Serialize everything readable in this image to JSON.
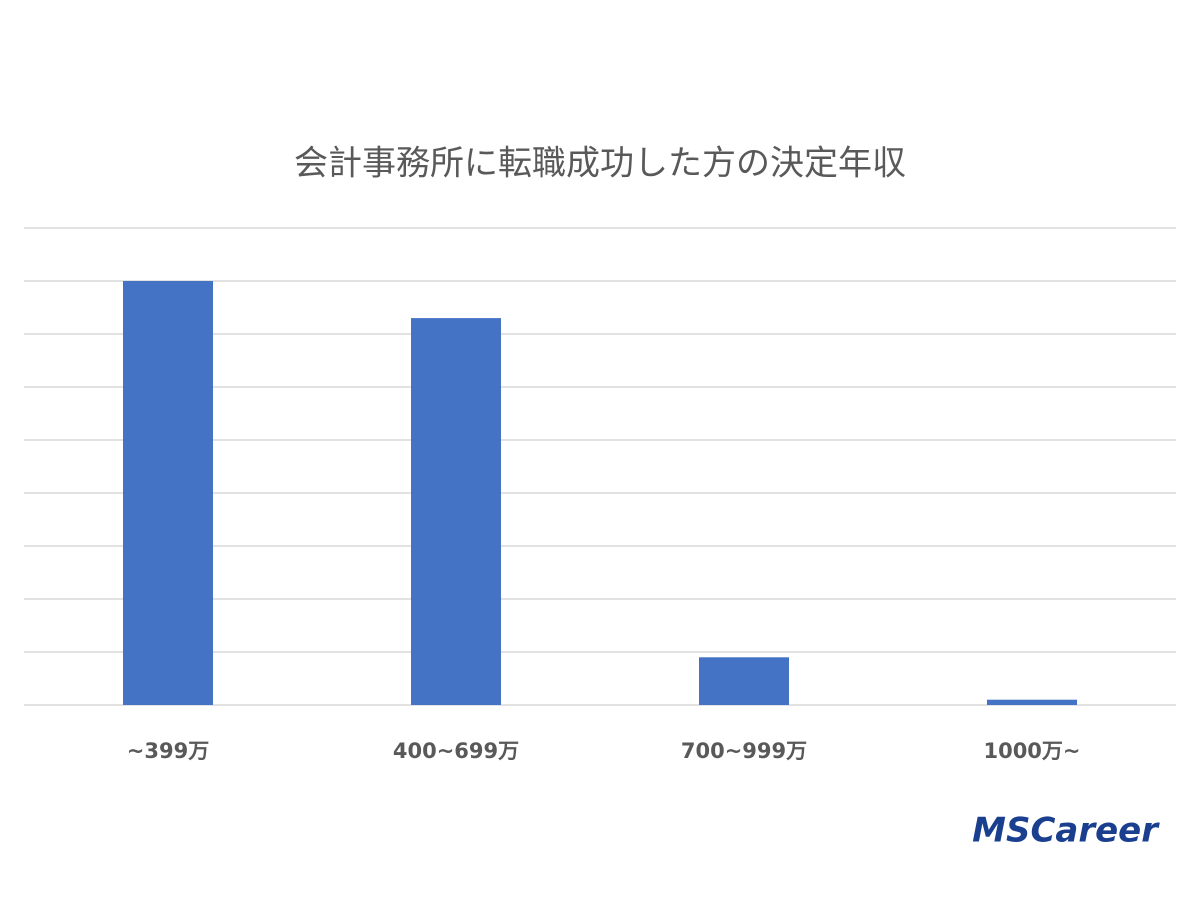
{
  "chart_data": {
    "type": "bar",
    "title": "会計事務所に転職成功した方の決定年収",
    "categories": [
      "~399万",
      "400~699万",
      "700~999万",
      "1000万~"
    ],
    "values": [
      8.0,
      7.3,
      0.9,
      0.1
    ],
    "color": "#4472c4",
    "ylim": [
      0,
      9
    ],
    "yticks": [
      0,
      1,
      2,
      3,
      4,
      5,
      6,
      7,
      8,
      9
    ],
    "grid": true
  },
  "logo": "MSCareer"
}
